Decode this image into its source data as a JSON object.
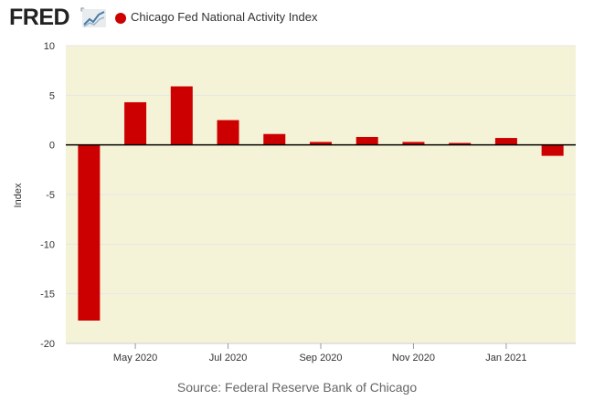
{
  "header": {
    "logo": "FRED",
    "logo_mark": "®",
    "series_label": "Chicago Fed National Activity Index"
  },
  "colors": {
    "bar": "#cc0000",
    "plot_bg": "#f5f3d7",
    "grid": "#e6e6e6",
    "zero_line": "#000000"
  },
  "chart_data": {
    "type": "bar",
    "title": "Chicago Fed National Activity Index",
    "xlabel": "",
    "ylabel": "Index",
    "ylim": [
      -20,
      10
    ],
    "yticks": [
      10,
      5,
      0,
      -5,
      -10,
      -15,
      -20
    ],
    "categories": [
      "2020-04",
      "2020-05",
      "2020-06",
      "2020-07",
      "2020-08",
      "2020-09",
      "2020-10",
      "2020-11",
      "2020-12",
      "2021-01",
      "2021-02"
    ],
    "values": [
      -17.7,
      4.3,
      5.9,
      2.5,
      1.1,
      0.3,
      0.8,
      0.3,
      0.2,
      0.7,
      -1.1
    ],
    "xtick_labels": [
      {
        "category": "2020-05",
        "label": "May 2020"
      },
      {
        "category": "2020-07",
        "label": "Jul 2020"
      },
      {
        "category": "2020-09",
        "label": "Sep 2020"
      },
      {
        "category": "2020-11",
        "label": "Nov 2020"
      },
      {
        "category": "2021-01",
        "label": "Jan 2021"
      }
    ],
    "grid": true,
    "source": "Source: Federal Reserve Bank of Chicago"
  }
}
